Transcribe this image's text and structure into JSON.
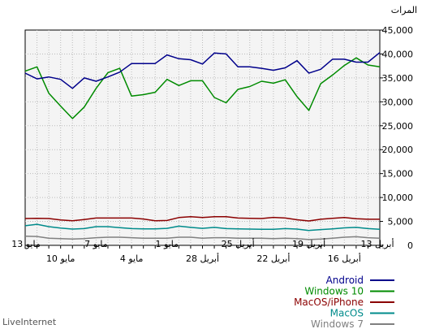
{
  "footer": "LiveInternet",
  "chart_data": {
    "type": "line",
    "ylabel": "المرات",
    "ylim": [
      0,
      45000
    ],
    "yticks": [
      0,
      5000,
      10000,
      15000,
      20000,
      25000,
      30000,
      35000,
      40000,
      45000
    ],
    "ytick_labels": [
      "0",
      "5,000",
      "10,000",
      "15,000",
      "20,000",
      "25,000",
      "30,000",
      "35,000",
      "40,000",
      "45,000"
    ],
    "x_axis": "days, newest on the left (13 مايو) to oldest on the right (13 أبريل)",
    "xtick_labels_row1": [
      "13 مايو",
      "7 مايو",
      "1 مايو",
      "25 أبريل",
      "19 أبريل",
      "13 أبريل"
    ],
    "xtick_labels_row2": [
      "10 مايو",
      "4 مايو",
      "28 أبريل",
      "22 أبريل",
      "16 أبريل"
    ],
    "grid": true,
    "legend_position": "bottom-right",
    "series": [
      {
        "name": "Android",
        "color": "#00008b",
        "values": [
          36000,
          34800,
          35200,
          34700,
          32800,
          35000,
          34300,
          35200,
          36200,
          38000,
          38000,
          38000,
          39800,
          39000,
          38800,
          37900,
          40200,
          40000,
          37300,
          37300,
          37000,
          36600,
          37100,
          38600,
          36000,
          36800,
          38900,
          38900,
          38300,
          38300,
          40300
        ]
      },
      {
        "name": "Windows 10",
        "color": "#008b00",
        "values": [
          36400,
          37300,
          31800,
          29100,
          26500,
          28900,
          32800,
          36100,
          37000,
          31200,
          31500,
          32000,
          34700,
          33400,
          34400,
          34400,
          30900,
          29800,
          32600,
          33200,
          34300,
          33900,
          34600,
          31100,
          28200,
          33800,
          35600,
          37600,
          39200,
          37700,
          37300
        ]
      },
      {
        "name": "MacOS/iPhone",
        "color": "#8b0000",
        "values": [
          5600,
          5650,
          5600,
          5300,
          5150,
          5400,
          5700,
          5700,
          5700,
          5700,
          5500,
          5150,
          5200,
          5800,
          6000,
          5800,
          6000,
          6000,
          5700,
          5650,
          5600,
          5850,
          5700,
          5350,
          5100,
          5450,
          5650,
          5800,
          5550,
          5450,
          5450
        ]
      },
      {
        "name": "MacOS",
        "color": "#008b8b",
        "values": [
          4100,
          4400,
          3900,
          3600,
          3400,
          3500,
          3900,
          3900,
          3700,
          3500,
          3450,
          3450,
          3550,
          4000,
          3750,
          3550,
          3750,
          3500,
          3450,
          3400,
          3350,
          3350,
          3500,
          3400,
          3100,
          3300,
          3450,
          3650,
          3750,
          3500,
          3350
        ]
      },
      {
        "name": "Windows 7",
        "color": "#808080",
        "values": [
          1900,
          1850,
          1500,
          1400,
          1300,
          1400,
          1600,
          1700,
          1700,
          1600,
          1500,
          1500,
          1500,
          1700,
          1700,
          1500,
          1600,
          1600,
          1500,
          1500,
          1500,
          1400,
          1500,
          1400,
          1200,
          1300,
          1500,
          1700,
          1800,
          1600,
          1500
        ]
      }
    ]
  }
}
